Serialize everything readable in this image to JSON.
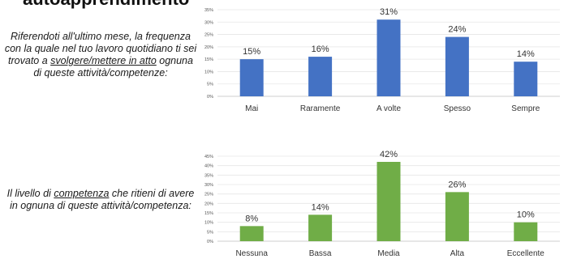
{
  "page": {
    "heading": "autoapprendimento"
  },
  "questions": [
    {
      "before": "Riferendoti all'ultimo mese, la frequenza con la quale nel tuo lavoro quotidiano ti sei trovato a ",
      "emphasis": "svolgere/mettere in atto",
      "after": " ognuna di queste attività/competenze:"
    },
    {
      "before": "Il livello di ",
      "emphasis": "competenza",
      "after": " che ritieni di avere in ognuna di queste attività/competenza:"
    }
  ],
  "chart_data": [
    {
      "type": "bar",
      "categories": [
        "Mai",
        "Raramente",
        "A volte",
        "Spesso",
        "Sempre"
      ],
      "values": [
        15,
        16,
        31,
        24,
        14
      ],
      "data_labels": [
        "15%",
        "16%",
        "31%",
        "24%",
        "14%"
      ],
      "ylim": [
        0,
        35
      ],
      "yticks": [
        "0%",
        "5%",
        "10%",
        "15%",
        "20%",
        "25%",
        "30%",
        "35%"
      ],
      "grid": true,
      "color": "#4472c4"
    },
    {
      "type": "bar",
      "categories": [
        "Nessuna",
        "Bassa",
        "Media",
        "Alta",
        "Eccellente"
      ],
      "values": [
        8,
        14,
        42,
        26,
        10
      ],
      "data_labels": [
        "8%",
        "14%",
        "42%",
        "26%",
        "10%"
      ],
      "ylim": [
        0,
        45
      ],
      "yticks": [
        "0%",
        "5%",
        "10%",
        "15%",
        "20%",
        "25%",
        "30%",
        "35%",
        "40%",
        "45%"
      ],
      "grid": true,
      "color": "#70ad47"
    }
  ]
}
